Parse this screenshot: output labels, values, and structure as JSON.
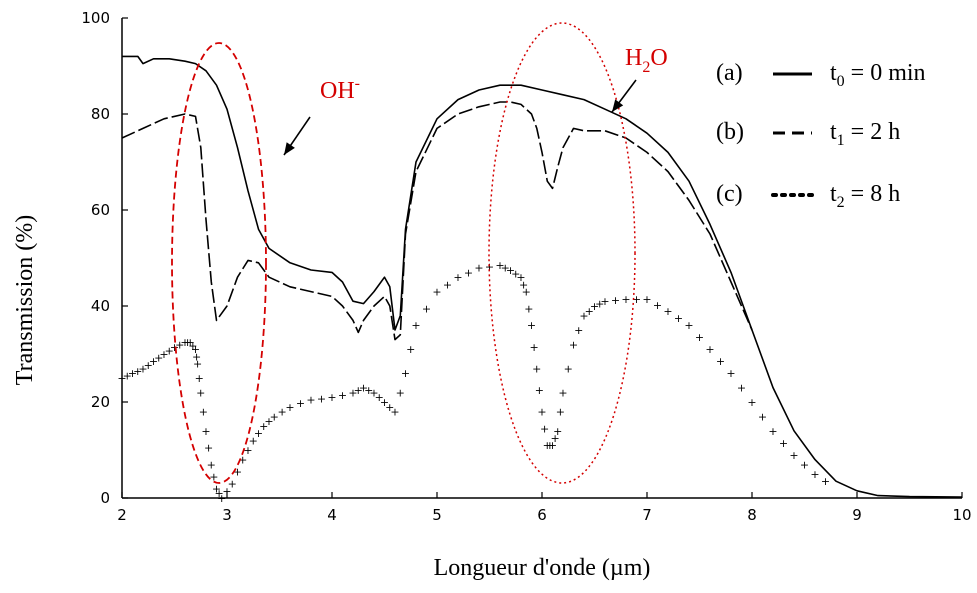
{
  "chart_data": {
    "type": "line",
    "xlabel": "Longueur d'onde (µm)",
    "ylabel": "Transmission (%)",
    "xlim": [
      2,
      10
    ],
    "ylim": [
      0,
      100
    ],
    "xticks": [
      "2",
      "3",
      "4",
      "5",
      "6",
      "7",
      "8",
      "9",
      "10"
    ],
    "yticks": [
      "0",
      "20",
      "40",
      "60",
      "80",
      "100"
    ],
    "grid": false,
    "legend_position": "top-right",
    "series": [
      {
        "key": "a",
        "style": "solid",
        "x": [
          2.0,
          2.15,
          2.2,
          2.3,
          2.45,
          2.6,
          2.7,
          2.8,
          2.9,
          3.0,
          3.1,
          3.2,
          3.3,
          3.4,
          3.6,
          3.8,
          4.0,
          4.1,
          4.2,
          4.3,
          4.4,
          4.5,
          4.55,
          4.6,
          4.65,
          4.7,
          4.8,
          5.0,
          5.2,
          5.4,
          5.6,
          5.8,
          6.0,
          6.2,
          6.4,
          6.6,
          6.8,
          7.0,
          7.2,
          7.4,
          7.6,
          7.8,
          8.0,
          8.2,
          8.4,
          8.6,
          8.8,
          9.0,
          9.2,
          9.5,
          10.0
        ],
        "y": [
          92,
          92,
          90.5,
          91.5,
          91.5,
          91,
          90.5,
          89,
          86,
          81,
          73,
          64,
          56,
          52,
          49,
          47.5,
          47,
          45,
          41,
          40.5,
          43,
          46,
          44,
          35,
          38,
          56,
          70,
          79,
          83,
          85,
          86,
          86,
          85,
          84,
          83,
          81,
          79,
          76,
          72,
          66,
          57,
          47,
          35,
          23,
          14,
          8,
          3.5,
          1.5,
          0.5,
          0.3,
          0.2
        ]
      },
      {
        "key": "b",
        "style": "dashed",
        "x": [
          2.0,
          2.2,
          2.4,
          2.6,
          2.7,
          2.75,
          2.8,
          2.85,
          2.9,
          3.0,
          3.1,
          3.2,
          3.3,
          3.4,
          3.6,
          3.8,
          4.0,
          4.1,
          4.2,
          4.25,
          4.3,
          4.4,
          4.5,
          4.55,
          4.6,
          4.65,
          4.7,
          4.8,
          5.0,
          5.2,
          5.4,
          5.6,
          5.7,
          5.8,
          5.9,
          5.95,
          6.0,
          6.05,
          6.1,
          6.15,
          6.2,
          6.3,
          6.4,
          6.6,
          6.8,
          7.0,
          7.2,
          7.4,
          7.6,
          7.8,
          8.0
        ],
        "y": [
          75,
          77,
          79,
          80,
          79.5,
          73,
          58,
          45,
          37,
          40,
          46,
          49.5,
          49,
          46,
          44,
          43,
          42,
          40,
          37,
          34.5,
          37,
          40,
          42,
          40,
          33,
          34,
          55,
          68,
          77,
          80,
          81.5,
          82.5,
          82.5,
          82,
          80,
          77,
          72,
          66,
          64.5,
          69,
          73,
          77,
          76.5,
          76.5,
          75,
          72,
          68,
          62,
          55,
          45,
          35
        ]
      },
      {
        "key": "c",
        "style": "dotted",
        "x": [
          2.0,
          2.1,
          2.2,
          2.3,
          2.4,
          2.5,
          2.6,
          2.65,
          2.7,
          2.72,
          2.75,
          2.8,
          2.85,
          2.9,
          2.95,
          3.05,
          3.15,
          3.25,
          3.35,
          3.45,
          3.6,
          3.8,
          4.0,
          4.2,
          4.3,
          4.4,
          4.5,
          4.6,
          4.7,
          4.8,
          5.0,
          5.2,
          5.4,
          5.6,
          5.7,
          5.8,
          5.85,
          5.9,
          5.95,
          6.0,
          6.05,
          6.1,
          6.15,
          6.2,
          6.3,
          6.4,
          6.5,
          6.6,
          6.8,
          7.0,
          7.2,
          7.4,
          7.6,
          7.8,
          8.0,
          8.2,
          8.4,
          8.6,
          8.8
        ],
        "y": [
          25,
          26,
          27,
          28.5,
          30,
          31.5,
          32.5,
          32.5,
          31,
          28,
          22,
          14,
          7,
          2,
          0,
          3,
          8,
          12,
          15,
          17,
          19,
          20.5,
          21,
          22,
          23,
          22,
          20,
          18,
          26,
          36,
          43,
          46,
          48,
          48.5,
          47.5,
          46,
          43,
          36,
          27,
          18,
          11,
          11,
          14,
          22,
          32,
          38,
          40,
          41,
          41.5,
          41.5,
          39,
          36,
          31,
          26,
          20,
          14,
          9,
          5,
          2
        ]
      }
    ],
    "legend": [
      {
        "key": "a",
        "label": "(a)",
        "style": "solid",
        "time": "t",
        "sub": "0",
        "value": " = 0 min"
      },
      {
        "key": "b",
        "label": "(b)",
        "style": "dashed",
        "time": "t",
        "sub": "1",
        "value": " = 2 h"
      },
      {
        "key": "c",
        "label": "(c)",
        "style": "dotted",
        "time": "t",
        "sub": "2",
        "value": " = 8 h"
      }
    ],
    "annotations": [
      {
        "key": "oh",
        "text": "OH",
        "sup": "-",
        "color": "#d40000",
        "ellipse_style": "dashed"
      },
      {
        "key": "h2o",
        "text_pre": "H",
        "sub": "2",
        "text_post": "O",
        "color": "#d40000",
        "ellipse_style": "dotted"
      }
    ]
  }
}
